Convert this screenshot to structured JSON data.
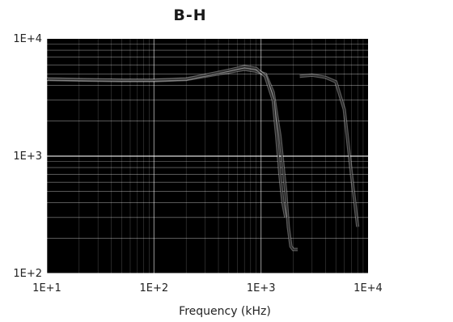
{
  "chart_data": {
    "type": "line",
    "title": "B-H",
    "xlabel": "Frequency (kHz)",
    "ylabel": "",
    "x_scale": "log",
    "y_scale": "log",
    "xlim": [
      10,
      10000
    ],
    "ylim": [
      100,
      10000
    ],
    "x_ticks": [
      "1E+1",
      "1E+2",
      "1E+3",
      "1E+4"
    ],
    "y_ticks": [
      "1E+2",
      "1E+3",
      "1E+4"
    ],
    "grid": true,
    "series": [
      {
        "x": [
          10,
          20,
          50,
          100,
          200,
          300,
          500,
          700,
          900,
          1100,
          1300,
          1500,
          1700,
          1800,
          1900,
          2000,
          2100,
          2200
        ],
        "y": [
          4500,
          4450,
          4400,
          4400,
          4500,
          4800,
          5200,
          5500,
          5300,
          5000,
          3500,
          1500,
          500,
          250,
          170,
          160,
          160,
          160
        ]
      },
      {
        "x": [
          10,
          20,
          50,
          100,
          200,
          300,
          500,
          700,
          900,
          1100,
          1300,
          1400,
          1500,
          1600,
          1700
        ],
        "y": [
          4550,
          4500,
          4450,
          4450,
          4550,
          4900,
          5400,
          5800,
          5600,
          4800,
          3000,
          1500,
          700,
          400,
          300
        ]
      },
      {
        "x": [
          2300,
          3000,
          4000,
          5000,
          6000,
          7000,
          8000
        ],
        "y": [
          4800,
          4900,
          4700,
          4300,
          2500,
          700,
          250
        ]
      }
    ],
    "colors": {
      "plot_bg": "#000000",
      "line": "#2a2a2a",
      "grid": "#ffffff"
    }
  }
}
